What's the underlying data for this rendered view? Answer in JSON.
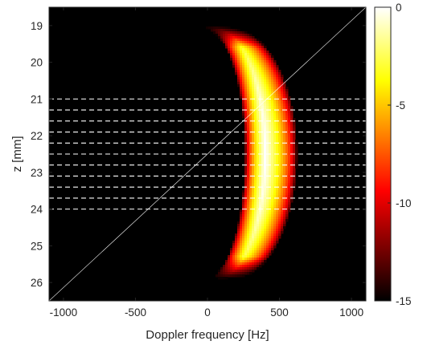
{
  "chart_data": {
    "type": "heatmap",
    "title": "",
    "xlabel": "Doppler frequency [Hz]",
    "ylabel": "z [mm]",
    "xlim": [
      -1100,
      1100
    ],
    "ylim": [
      18.5,
      26.5
    ],
    "y_reversed": true,
    "x_ticks": [
      -1000,
      -500,
      0,
      500,
      1000
    ],
    "x_tick_labels": [
      "-1000",
      "-500",
      "0",
      "500",
      "1000"
    ],
    "y_ticks": [
      19,
      20,
      21,
      22,
      23,
      24,
      25,
      26
    ],
    "y_tick_labels": [
      "19",
      "20",
      "21",
      "22",
      "23",
      "24",
      "25",
      "26"
    ],
    "colormap": "hot",
    "colorbar": {
      "clim": [
        -15,
        0
      ],
      "ticks": [
        0,
        -5,
        -10,
        -15
      ],
      "tick_labels": [
        "0",
        "-5",
        "-10",
        "-15"
      ]
    },
    "diagonal_line": {
      "from": [
        -1100,
        26.5
      ],
      "to": [
        1100,
        18.5
      ],
      "color": "#ffffff"
    },
    "dashed_lines_z": [
      21.0,
      21.3,
      21.6,
      21.9,
      22.2,
      22.5,
      22.8,
      23.1,
      23.4,
      23.7,
      24.0
    ],
    "band": {
      "z_top": 19.1,
      "z_bottom": 25.8,
      "z_center": 22.5,
      "left_edge_hz_at_top": 0,
      "left_edge_hz_at_center": 280,
      "right_edge_hz_at_top": 150,
      "right_edge_hz_at_center": 600,
      "peak_hz_at_top": 60,
      "peak_hz_at_center": 400
    }
  }
}
